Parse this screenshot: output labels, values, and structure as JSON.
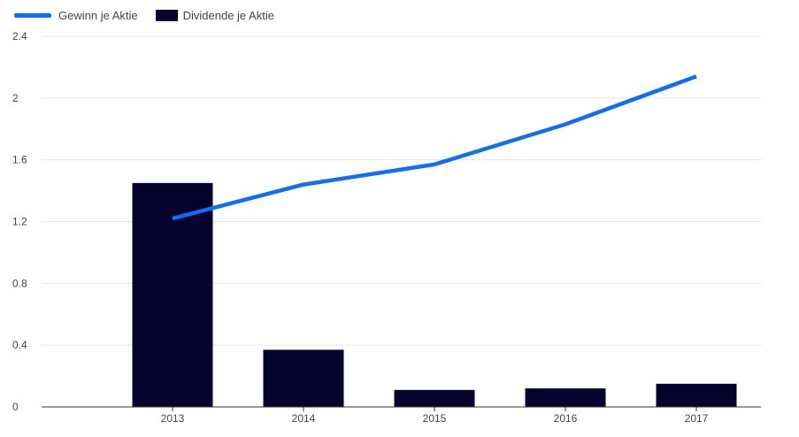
{
  "chart_data": {
    "type": "bar",
    "title": "",
    "xlabel": "",
    "ylabel": "",
    "categories": [
      "2013",
      "2014",
      "2015",
      "2016",
      "2017"
    ],
    "series": [
      {
        "name": "Dividende je Aktie",
        "kind": "bar",
        "color": "#06032e",
        "values": [
          1.45,
          0.37,
          0.11,
          0.12,
          0.15
        ]
      },
      {
        "name": "Gewinn je Aktie",
        "kind": "line",
        "color": "#0f6ef5",
        "values": [
          1.22,
          1.44,
          1.57,
          1.83,
          2.14
        ]
      }
    ],
    "ylim": [
      0,
      2.4
    ],
    "yticks": [
      "0",
      "0.4",
      "0.8",
      "1.2",
      "1.6",
      "2",
      "2.4"
    ],
    "grid": true,
    "legend_position": "top-left"
  },
  "legend": {
    "line_label": "Gewinn je Aktie",
    "bar_label": "Dividende je Aktie"
  }
}
